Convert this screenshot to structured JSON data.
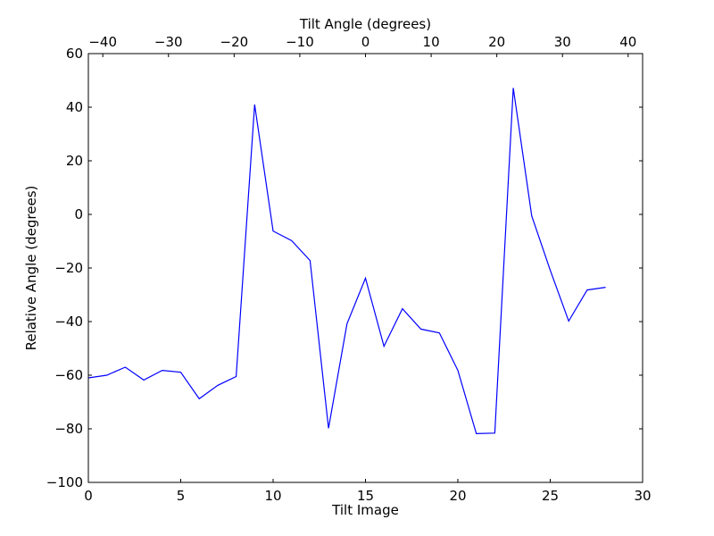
{
  "chart_data": {
    "type": "line",
    "xlabel": "Tilt Image",
    "ylabel": "Relative Angle (degrees)",
    "top_xlabel": "Tilt Angle (degrees)",
    "xlim": [
      0,
      30
    ],
    "ylim": [
      -100,
      60
    ],
    "top_xlim": [
      -42.2,
      42.2
    ],
    "xticks": [
      0,
      5,
      10,
      15,
      20,
      25,
      30
    ],
    "yticks": [
      -100,
      -80,
      -60,
      -40,
      -20,
      0,
      20,
      40,
      60
    ],
    "top_xticks": [
      -40,
      -30,
      -20,
      -10,
      0,
      10,
      20,
      30,
      40
    ],
    "grid": false,
    "line_color": "#0000ff",
    "series": [
      {
        "x": [
          0,
          1,
          2,
          3,
          4,
          5,
          6,
          7,
          8,
          9,
          10,
          11,
          12,
          13,
          14,
          15,
          16,
          17,
          18,
          19,
          20,
          21,
          22,
          23,
          24,
          25,
          26,
          27,
          28
        ],
        "values": [
          -61,
          -60,
          -57,
          -61.8,
          -58.2,
          -58.9,
          -68.8,
          -63.8,
          -60.5,
          41,
          -6.2,
          -9.8,
          -17.2,
          -79.8,
          -40.8,
          -23.8,
          -49.2,
          -35.2,
          -42.8,
          -44.2,
          -58.2,
          -81.8,
          -81.6,
          47.2,
          -0.6,
          -20.8,
          -39.8,
          -28.2,
          -27.2
        ]
      }
    ]
  }
}
